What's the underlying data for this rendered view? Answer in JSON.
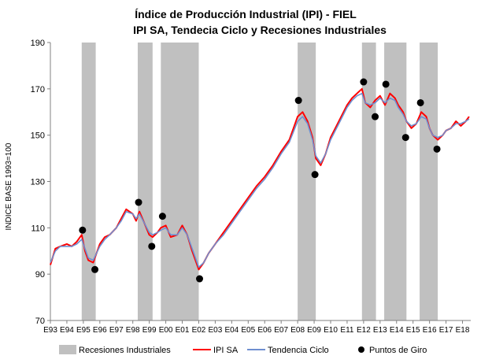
{
  "chart_data": {
    "type": "line",
    "title": "Índice de Producción Industrial (IPI) - FIEL",
    "subtitle": "IPI SA, Tendecia Ciclo y Recesiones Industriales",
    "ylabel": "INDICE BASE 1993=100",
    "xlabel": "",
    "ylim": [
      70,
      190
    ],
    "yticks": [
      70,
      90,
      110,
      130,
      150,
      170,
      190
    ],
    "xlim": [
      1993.0,
      2018.5
    ],
    "xticks": [
      "E93",
      "E94",
      "E95",
      "E96",
      "E97",
      "E98",
      "E99",
      "E00",
      "E01",
      "E02",
      "E03",
      "E04",
      "E05",
      "E06",
      "E07",
      "E08",
      "E09",
      "E10",
      "E11",
      "E12",
      "E13",
      "E14",
      "E15",
      "E16",
      "E17",
      "E18"
    ],
    "grid": false,
    "legend": "bottom",
    "colors": {
      "recession": "#c0c0c0",
      "ipi": "#ff0000",
      "trend": "#6f8fd0",
      "turning_points": "#000000"
    },
    "recessions": [
      [
        1994.9,
        1995.75
      ],
      [
        1998.3,
        1999.2
      ],
      [
        1999.7,
        2002.0
      ],
      [
        2008.0,
        2009.1
      ],
      [
        2011.9,
        2012.75
      ],
      [
        2013.25,
        2014.6
      ],
      [
        2015.4,
        2016.5
      ]
    ],
    "series": [
      {
        "name": "IPI SA",
        "x": [
          1993.0,
          1993.3,
          1993.6,
          1994.0,
          1994.3,
          1994.6,
          1994.9,
          1995.1,
          1995.3,
          1995.6,
          1995.8,
          1996.0,
          1996.3,
          1996.6,
          1997.0,
          1997.3,
          1997.6,
          1998.0,
          1998.2,
          1998.4,
          1998.7,
          1999.0,
          1999.2,
          1999.5,
          1999.7,
          2000.0,
          2000.3,
          2000.7,
          2001.0,
          2001.3,
          2001.6,
          2002.0,
          2002.3,
          2002.6,
          2003.0,
          2003.5,
          2004.0,
          2004.5,
          2005.0,
          2005.5,
          2006.0,
          2006.5,
          2007.0,
          2007.5,
          2008.0,
          2008.3,
          2008.6,
          2008.9,
          2009.1,
          2009.4,
          2009.7,
          2010.0,
          2010.5,
          2011.0,
          2011.3,
          2011.6,
          2011.9,
          2012.1,
          2012.4,
          2012.7,
          2013.0,
          2013.3,
          2013.6,
          2013.9,
          2014.1,
          2014.4,
          2014.6,
          2014.9,
          2015.2,
          2015.5,
          2015.8,
          2016.0,
          2016.2,
          2016.5,
          2016.8,
          2017.0,
          2017.3,
          2017.6,
          2017.9,
          2018.2,
          2018.4
        ],
        "values": [
          94,
          101,
          102,
          103,
          102,
          104,
          107,
          100,
          96,
          95,
          99,
          103,
          106,
          107,
          110,
          114,
          118,
          116,
          113,
          117,
          112,
          107,
          106,
          108,
          110,
          111,
          106,
          107,
          111,
          107,
          100,
          92,
          95,
          99,
          103,
          108,
          113,
          118,
          123,
          128,
          132,
          137,
          143,
          148,
          158,
          160,
          156,
          149,
          140,
          137,
          142,
          149,
          156,
          163,
          166,
          168,
          170,
          164,
          162,
          165,
          167,
          163,
          168,
          166,
          163,
          160,
          156,
          153,
          155,
          160,
          158,
          153,
          150,
          148,
          150,
          152,
          153,
          156,
          154,
          156,
          158
        ]
      },
      {
        "name": "Tendencia Ciclo",
        "x": [
          1993.0,
          1993.3,
          1993.6,
          1994.0,
          1994.3,
          1994.6,
          1994.9,
          1995.1,
          1995.3,
          1995.6,
          1995.8,
          1996.0,
          1996.3,
          1996.6,
          1997.0,
          1997.3,
          1997.6,
          1998.0,
          1998.2,
          1998.4,
          1998.7,
          1999.0,
          1999.2,
          1999.5,
          1999.7,
          2000.0,
          2000.3,
          2000.7,
          2001.0,
          2001.3,
          2001.6,
          2002.0,
          2002.3,
          2002.6,
          2003.0,
          2003.5,
          2004.0,
          2004.5,
          2005.0,
          2005.5,
          2006.0,
          2006.5,
          2007.0,
          2007.5,
          2008.0,
          2008.3,
          2008.6,
          2008.9,
          2009.1,
          2009.4,
          2009.7,
          2010.0,
          2010.5,
          2011.0,
          2011.3,
          2011.6,
          2011.9,
          2012.1,
          2012.4,
          2012.7,
          2013.0,
          2013.3,
          2013.6,
          2013.9,
          2014.1,
          2014.4,
          2014.6,
          2014.9,
          2015.2,
          2015.5,
          2015.8,
          2016.0,
          2016.2,
          2016.5,
          2016.8,
          2017.0,
          2017.3,
          2017.6,
          2017.9,
          2018.2,
          2018.4
        ],
        "values": [
          95,
          100,
          102,
          102,
          102,
          103,
          105,
          101,
          97,
          96,
          99,
          102,
          105,
          107,
          110,
          113,
          117,
          116,
          114,
          116,
          112,
          108,
          107,
          108,
          109,
          110,
          107,
          107,
          110,
          107,
          101,
          93,
          95,
          99,
          103,
          107,
          112,
          117,
          122,
          127,
          131,
          136,
          142,
          147,
          156,
          158,
          155,
          148,
          141,
          138,
          142,
          148,
          155,
          162,
          165,
          167,
          168,
          164,
          163,
          164,
          166,
          164,
          166,
          165,
          162,
          159,
          156,
          154,
          155,
          158,
          157,
          153,
          150,
          149,
          150,
          152,
          153,
          155,
          155,
          156,
          157
        ]
      }
    ],
    "turning_points": {
      "name": "Puntos de Giro",
      "x": [
        1994.95,
        1995.7,
        1998.35,
        1999.15,
        1999.8,
        2002.05,
        2008.05,
        2009.05,
        2012.0,
        2012.7,
        2013.35,
        2014.55,
        2015.45,
        2016.45
      ],
      "values": [
        109,
        92,
        121,
        102,
        115,
        88,
        165,
        133,
        173,
        158,
        172,
        149,
        164,
        144
      ]
    },
    "legend_items": [
      "Recesiones Industriales",
      "IPI SA",
      "Tendencia Ciclo",
      "Puntos de Giro"
    ]
  }
}
